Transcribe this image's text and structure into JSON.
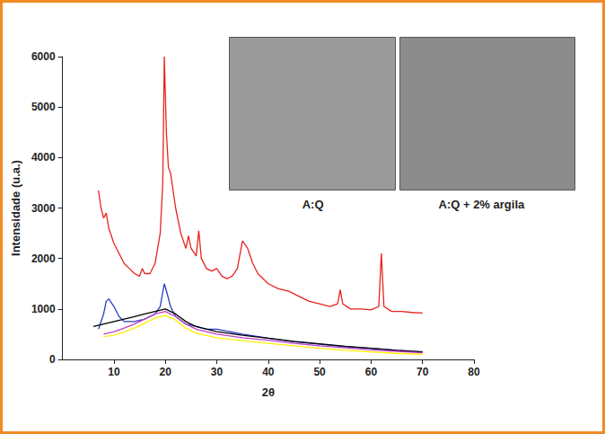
{
  "chart_data": {
    "type": "line",
    "xlabel": "2θ",
    "ylabel": "Intensidade (u.a.)",
    "xlim": [
      0,
      80
    ],
    "xticks": [
      10,
      20,
      30,
      40,
      50,
      60,
      70,
      80
    ],
    "ylim": [
      0,
      6000
    ],
    "yticks": [
      0,
      1000,
      2000,
      3000,
      4000,
      5000,
      6000
    ],
    "grid": false,
    "annotations": [
      "A:Q",
      "A:Q + 2% argila"
    ],
    "series": [
      {
        "color": "#e8231f",
        "x": [
          7,
          7.5,
          8,
          8.5,
          9,
          10,
          11,
          12,
          13,
          14,
          15,
          15.5,
          16,
          17,
          18,
          19,
          19.5,
          19.8,
          20.2,
          20.6,
          21,
          22,
          23,
          24,
          24.5,
          25,
          26,
          26.5,
          27,
          28,
          29,
          30,
          31,
          32,
          33,
          34,
          35,
          36,
          37,
          38,
          40,
          42,
          44,
          46,
          48,
          50,
          52,
          53.5,
          54,
          54.5,
          56,
          58,
          60,
          61.5,
          62,
          62.5,
          64,
          66,
          68,
          70
        ],
        "values": [
          3350,
          3000,
          2800,
          2900,
          2600,
          2300,
          2100,
          1900,
          1800,
          1700,
          1650,
          1800,
          1700,
          1700,
          1900,
          2500,
          3500,
          6000,
          4500,
          3800,
          3700,
          3000,
          2500,
          2200,
          2450,
          2200,
          2050,
          2550,
          2000,
          1800,
          1750,
          1800,
          1650,
          1600,
          1650,
          1800,
          2350,
          2200,
          1900,
          1700,
          1500,
          1400,
          1350,
          1250,
          1150,
          1100,
          1050,
          1100,
          1380,
          1100,
          1000,
          1000,
          980,
          1050,
          2100,
          1050,
          950,
          950,
          930,
          920
        ]
      },
      {
        "color": "#2b3cc4",
        "x": [
          7,
          8,
          8.5,
          9,
          10,
          11,
          12,
          14,
          16,
          18,
          19,
          19.8,
          20.5,
          21,
          22,
          24,
          26,
          28,
          30,
          35,
          40,
          45,
          50,
          55,
          60,
          65,
          70
        ],
        "values": [
          600,
          900,
          1150,
          1200,
          1050,
          850,
          750,
          750,
          800,
          900,
          1050,
          1500,
          1250,
          1050,
          850,
          700,
          650,
          600,
          600,
          500,
          420,
          350,
          300,
          250,
          220,
          180,
          150
        ]
      },
      {
        "color": "#000000",
        "x": [
          6,
          8,
          10,
          12,
          14,
          16,
          18,
          20,
          22,
          24,
          26,
          30,
          35,
          40,
          45,
          50,
          55,
          60,
          65,
          70
        ],
        "values": [
          650,
          700,
          750,
          800,
          850,
          900,
          950,
          1000,
          900,
          750,
          650,
          550,
          480,
          420,
          360,
          310,
          260,
          220,
          180,
          150
        ]
      },
      {
        "color": "#c040c0",
        "x": [
          8,
          10,
          12,
          14,
          16,
          18,
          20,
          22,
          24,
          26,
          30,
          35,
          40,
          45,
          50,
          55,
          60,
          65,
          70
        ],
        "values": [
          500,
          550,
          620,
          700,
          800,
          900,
          950,
          850,
          700,
          600,
          500,
          430,
          380,
          320,
          270,
          230,
          190,
          160,
          130
        ]
      },
      {
        "color": "#ffee00",
        "x": [
          8,
          10,
          12,
          14,
          16,
          18,
          20,
          22,
          24,
          26,
          30,
          35,
          40,
          45,
          50,
          55,
          60,
          65,
          70
        ],
        "values": [
          450,
          480,
          540,
          620,
          720,
          820,
          870,
          780,
          620,
          520,
          430,
          370,
          320,
          270,
          220,
          180,
          150,
          120,
          100
        ]
      }
    ]
  }
}
